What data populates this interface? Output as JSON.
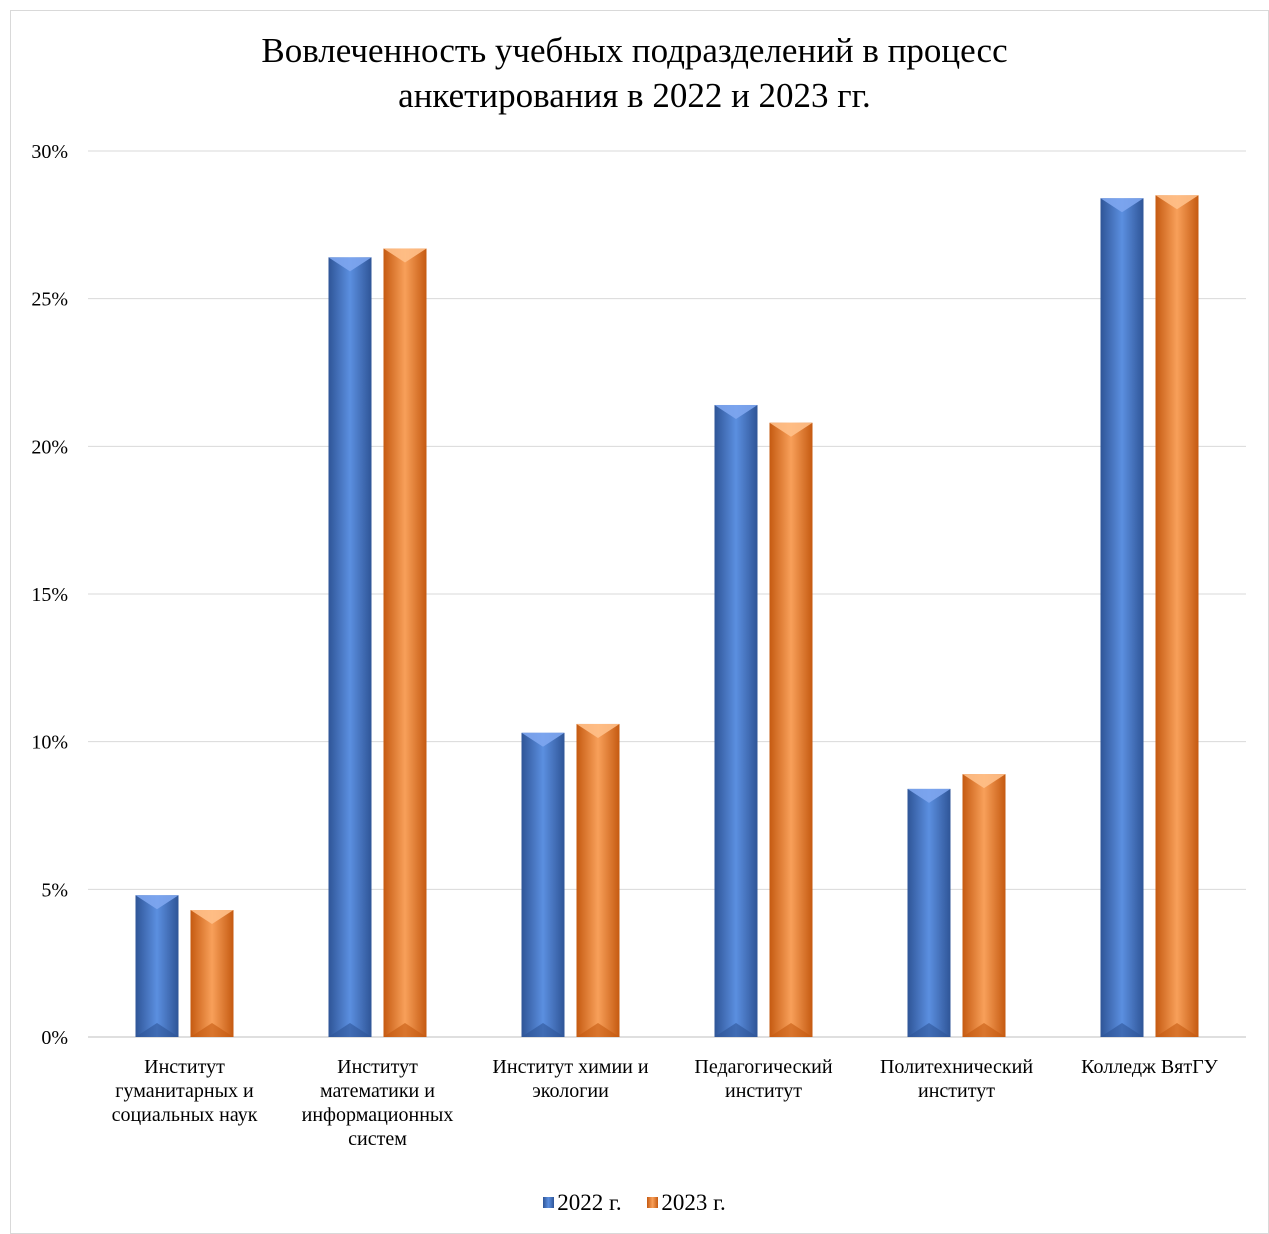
{
  "chart_data": {
    "type": "bar",
    "title": "Вовлеченность учебных подразделений в процесс анкетирования в 2022 и 2023 гг.",
    "title_lines": [
      "Вовлеченность учебных подразделений в процесс",
      "анкетирования в 2022 и 2023 гг."
    ],
    "categories": [
      "Институт гуманитарных и социальных наук",
      "Институт математики и информационных систем",
      "Институт химии и экологии",
      "Педагогический институт",
      "Политехнический институт",
      "Колледж ВятГУ"
    ],
    "category_lines": [
      [
        "Институт",
        "гуманитарных и",
        "социальных наук"
      ],
      [
        "Институт",
        "математики и",
        "информационных",
        "систем"
      ],
      [
        "Институт химии и",
        "экологии"
      ],
      [
        "Педагогический",
        "институт"
      ],
      [
        "Политехнический",
        "институт"
      ],
      [
        "Колледж ВятГУ"
      ]
    ],
    "series": [
      {
        "name": "2022 г.",
        "color": "#4472c4",
        "values": [
          4.8,
          26.4,
          10.3,
          21.4,
          8.4,
          28.4
        ]
      },
      {
        "name": "2023 г.",
        "color": "#ed7d31",
        "values": [
          4.3,
          26.7,
          10.6,
          20.8,
          8.9,
          28.5
        ]
      }
    ],
    "yticks": [
      "0%",
      "5%",
      "10%",
      "15%",
      "20%",
      "25%",
      "30%"
    ],
    "ylim": [
      0,
      30
    ],
    "y_unit": "%",
    "grid": true,
    "legend_position": "bottom"
  }
}
